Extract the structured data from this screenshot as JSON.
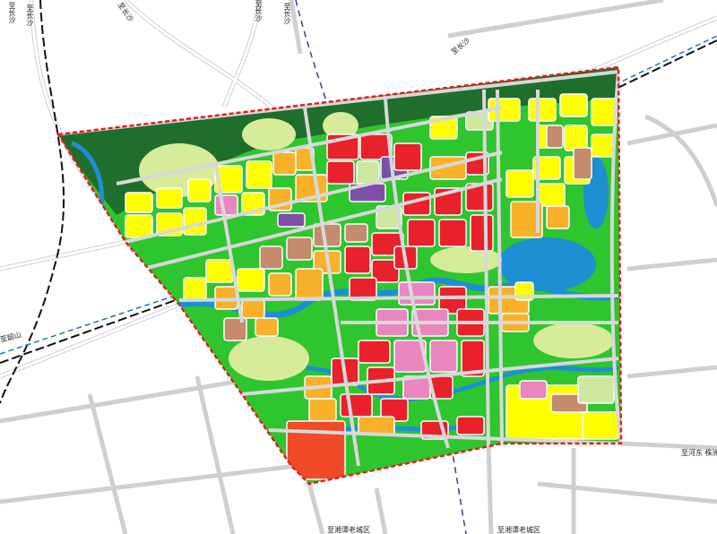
{
  "map": {
    "directions": {
      "to_changsha_1": "至长沙",
      "to_changsha_2": "至长沙",
      "to_changsha_3": "至长沙",
      "to_changsha_4": "至长沙",
      "to_changsha_5": "至长沙",
      "to_changsha_6": "至长沙",
      "to_shaoshan": "至韶山",
      "to_hedong_zhuzhou": "至河东 株洲",
      "to_xiangtan_old_1": "至湘潭老城区",
      "to_xiangtan_old_2": "至湘潭老城区"
    },
    "colors": {
      "boundary": "#e02020",
      "forest": "#1f6e2c",
      "green_space": "#2fc52f",
      "light_green": "#cfe8a0",
      "water": "#1d8fd2",
      "residential": "#ffff00",
      "commercial_mixed": "#f7b12a",
      "commercial": "#e8212b",
      "cultural": "#e985bf",
      "administrative": "#7d4fa8",
      "industrial": "#c48b6c",
      "large_site": "#ef4a2a",
      "road": "#c8c8c8",
      "railway": "#111111",
      "transit": "#3040a0"
    }
  }
}
